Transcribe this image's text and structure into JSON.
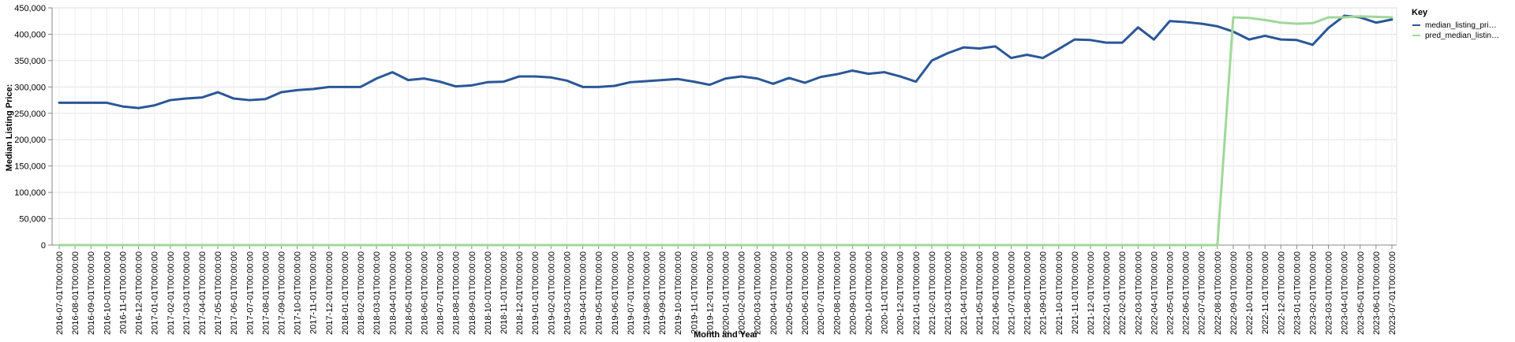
{
  "chart_data": {
    "type": "line",
    "xlabel": "Month and Year",
    "ylabel": "Median Listing Price:",
    "ylim": [
      0,
      450000
    ],
    "yticks": [
      "0",
      "50,000",
      "100,000",
      "150,000",
      "200,000",
      "250,000",
      "300,000",
      "350,000",
      "400,000",
      "450,000"
    ],
    "grid": true,
    "legend": {
      "title": "Key",
      "placement": "right"
    },
    "x": [
      "2016-07-01T00:00:00",
      "2016-08-01T00:00:00",
      "2016-09-01T00:00:00",
      "2016-10-01T00:00:00",
      "2016-11-01T00:00:00",
      "2016-12-01T00:00:00",
      "2017-01-01T00:00:00",
      "2017-02-01T00:00:00",
      "2017-03-01T00:00:00",
      "2017-04-01T00:00:00",
      "2017-05-01T00:00:00",
      "2017-06-01T00:00:00",
      "2017-07-01T00:00:00",
      "2017-08-01T00:00:00",
      "2017-09-01T00:00:00",
      "2017-10-01T00:00:00",
      "2017-11-01T00:00:00",
      "2017-12-01T00:00:00",
      "2018-01-01T00:00:00",
      "2018-02-01T00:00:00",
      "2018-03-01T00:00:00",
      "2018-04-01T00:00:00",
      "2018-05-01T00:00:00",
      "2018-06-01T00:00:00",
      "2018-07-01T00:00:00",
      "2018-08-01T00:00:00",
      "2018-09-01T00:00:00",
      "2018-10-01T00:00:00",
      "2018-11-01T00:00:00",
      "2018-12-01T00:00:00",
      "2019-01-01T00:00:00",
      "2019-02-01T00:00:00",
      "2019-03-01T00:00:00",
      "2019-04-01T00:00:00",
      "2019-05-01T00:00:00",
      "2019-06-01T00:00:00",
      "2019-07-01T00:00:00",
      "2019-08-01T00:00:00",
      "2019-09-01T00:00:00",
      "2019-10-01T00:00:00",
      "2019-11-01T00:00:00",
      "2019-12-01T00:00:00",
      "2020-01-01T00:00:00",
      "2020-02-01T00:00:00",
      "2020-03-01T00:00:00",
      "2020-04-01T00:00:00",
      "2020-05-01T00:00:00",
      "2020-06-01T00:00:00",
      "2020-07-01T00:00:00",
      "2020-08-01T00:00:00",
      "2020-09-01T00:00:00",
      "2020-10-01T00:00:00",
      "2020-11-01T00:00:00",
      "2020-12-01T00:00:00",
      "2021-01-01T00:00:00",
      "2021-02-01T00:00:00",
      "2021-03-01T00:00:00",
      "2021-04-01T00:00:00",
      "2021-05-01T00:00:00",
      "2021-06-01T00:00:00",
      "2021-07-01T00:00:00",
      "2021-08-01T00:00:00",
      "2021-09-01T00:00:00",
      "2021-10-01T00:00:00",
      "2021-11-01T00:00:00",
      "2021-12-01T00:00:00",
      "2022-01-01T00:00:00",
      "2022-02-01T00:00:00",
      "2022-03-01T00:00:00",
      "2022-04-01T00:00:00",
      "2022-05-01T00:00:00",
      "2022-06-01T00:00:00",
      "2022-07-01T00:00:00",
      "2022-08-01T00:00:00",
      "2022-09-01T00:00:00",
      "2022-10-01T00:00:00",
      "2022-11-01T00:00:00",
      "2022-12-01T00:00:00",
      "2023-01-01T00:00:00",
      "2023-02-01T00:00:00",
      "2023-03-01T00:00:00",
      "2023-04-01T00:00:00",
      "2023-05-01T00:00:00",
      "2023-06-01T00:00:00",
      "2023-07-01T00:00:00"
    ],
    "series": [
      {
        "name": "median_listing_pri…",
        "color": "#2b5797",
        "values": [
          270000,
          270000,
          270000,
          270000,
          263000,
          260000,
          265000,
          275000,
          278000,
          280000,
          290000,
          278000,
          275000,
          277000,
          290000,
          294000,
          296000,
          300000,
          300000,
          300000,
          316000,
          328000,
          313000,
          316000,
          310000,
          301000,
          303000,
          309000,
          310000,
          320000,
          320000,
          318000,
          312000,
          300000,
          300000,
          302000,
          309000,
          311000,
          313000,
          315000,
          310000,
          304000,
          316000,
          320000,
          316000,
          306000,
          317000,
          308000,
          319000,
          324000,
          331000,
          325000,
          328000,
          320000,
          310000,
          350000,
          364000,
          375000,
          373000,
          377000,
          355000,
          361000,
          355000,
          372000,
          390000,
          389000,
          384000,
          384000,
          413000,
          390000,
          425000,
          423000,
          420000,
          415000,
          405000,
          390000,
          397000,
          390000,
          389000,
          380000,
          412000,
          435000,
          432000,
          422000,
          428000
        ]
      },
      {
        "name": "pred_median_listin…",
        "color": "#9fd89a",
        "values": [
          0,
          0,
          0,
          0,
          0,
          0,
          0,
          0,
          0,
          0,
          0,
          0,
          0,
          0,
          0,
          0,
          0,
          0,
          0,
          0,
          0,
          0,
          0,
          0,
          0,
          0,
          0,
          0,
          0,
          0,
          0,
          0,
          0,
          0,
          0,
          0,
          0,
          0,
          0,
          0,
          0,
          0,
          0,
          0,
          0,
          0,
          0,
          0,
          0,
          0,
          0,
          0,
          0,
          0,
          0,
          0,
          0,
          0,
          0,
          0,
          0,
          0,
          0,
          0,
          0,
          0,
          0,
          0,
          0,
          0,
          0,
          0,
          0,
          0,
          432000,
          431000,
          427000,
          422000,
          420000,
          421000,
          432000,
          432000,
          434000,
          433000,
          432000
        ]
      }
    ]
  }
}
